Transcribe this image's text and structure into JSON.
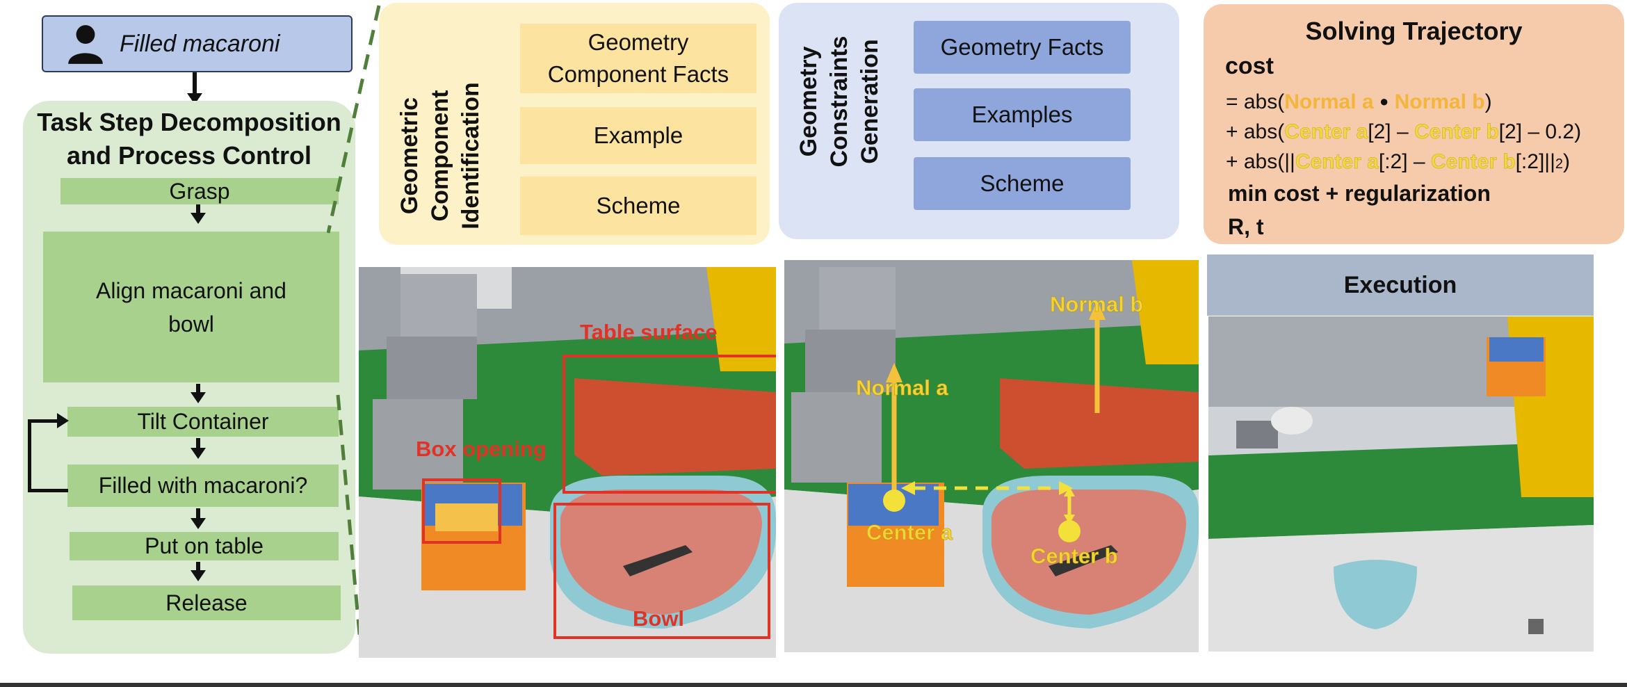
{
  "user_instruction": "Filled macaroni",
  "task_panel": {
    "title_line1": "Task Step Decomposition",
    "title_line2": "and Process Control",
    "steps": [
      "Grasp",
      "Align macaroni and bowl",
      "Tilt Container",
      "Filled with macaroni?",
      "Put on table",
      "Release"
    ]
  },
  "component_identification": {
    "title_lines": [
      "Geometric",
      "Component",
      "Identification"
    ],
    "boxes": [
      "Geometry\nComponent Facts",
      "Example",
      "Scheme"
    ]
  },
  "constraints_generation": {
    "title_lines": [
      "Geometry",
      "Constraints",
      "Generation"
    ],
    "boxes": [
      "Geometry Facts",
      "Examples",
      "Scheme"
    ]
  },
  "solving_trajectory": {
    "title": "Solving Trajectory",
    "cost_label": "cost",
    "min_line": "min cost + regularization",
    "result": "R, t"
  },
  "photo_labels": {
    "table_surface": "Table surface",
    "box_opening": "Box opening",
    "bowl": "Bowl",
    "normal_a": "Normal a",
    "normal_b": "Normal b",
    "center_a": "Center a",
    "center_b": "Center b"
  },
  "execution": {
    "title": "Execution"
  },
  "colors": {
    "step_green": "#a9d18e",
    "panel_green": "#dbebd2",
    "yellow_box": "#fde3a0",
    "blue_box": "#8fa6dc",
    "orange_panel": "#f5cbab",
    "label_red": "#e03225",
    "label_yellow": "#f3d23a"
  }
}
